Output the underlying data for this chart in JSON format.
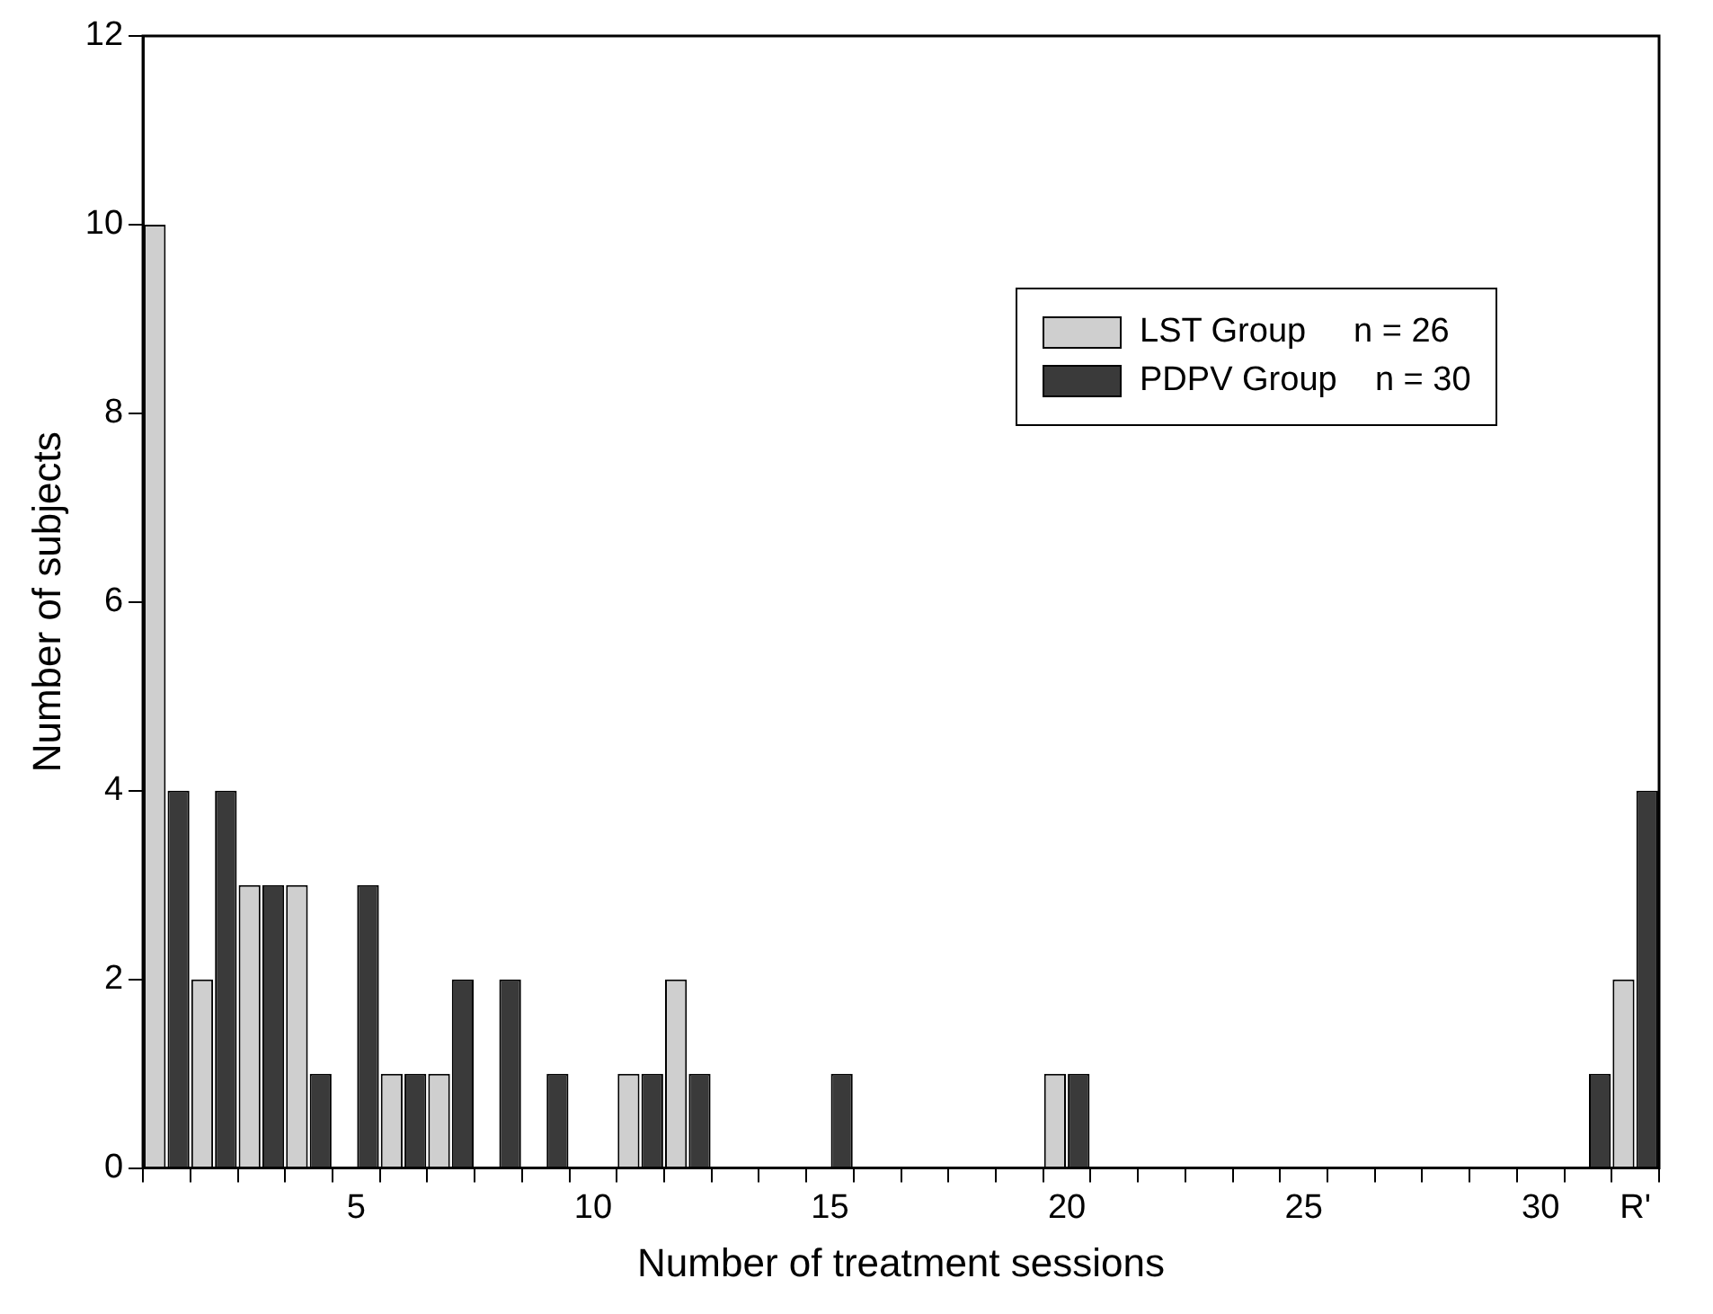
{
  "chart_data": {
    "type": "bar",
    "xlabel": "Number of treatment sessions",
    "ylabel": "Number of subjects",
    "categories": [
      null,
      null,
      null,
      null,
      "5",
      null,
      null,
      null,
      null,
      "10",
      null,
      null,
      null,
      null,
      "15",
      null,
      null,
      null,
      null,
      "20",
      null,
      null,
      null,
      null,
      "25",
      null,
      null,
      null,
      null,
      "30",
      null,
      "R'"
    ],
    "series": [
      {
        "name": "LST Group     n = 26",
        "color": "#cfcfcf",
        "values": [
          10,
          2,
          3,
          3,
          0,
          1,
          1,
          0,
          0,
          0,
          1,
          2,
          0,
          0,
          0,
          0,
          0,
          0,
          0,
          1,
          0,
          0,
          0,
          0,
          0,
          0,
          0,
          0,
          0,
          0,
          0,
          2
        ]
      },
      {
        "name": "PDPV Group    n = 30",
        "color": "#3a3a3a",
        "values": [
          4,
          4,
          3,
          1,
          3,
          1,
          2,
          2,
          1,
          0,
          1,
          1,
          0,
          0,
          1,
          0,
          0,
          0,
          0,
          1,
          0,
          0,
          0,
          0,
          0,
          0,
          0,
          0,
          0,
          0,
          1,
          4
        ]
      }
    ],
    "ylim": [
      0,
      12
    ],
    "yticks": [
      0,
      2,
      4,
      6,
      8,
      10,
      12
    ],
    "grid": false,
    "legend": "top right"
  }
}
